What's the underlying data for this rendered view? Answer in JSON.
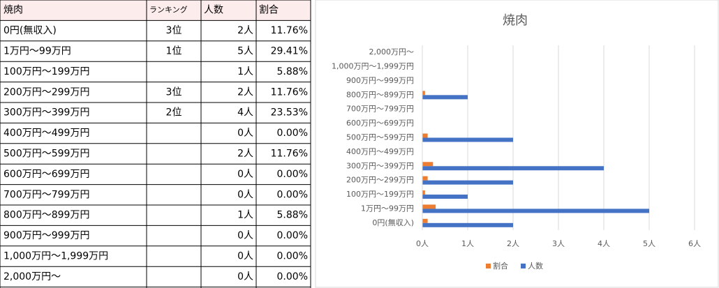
{
  "table": {
    "header": [
      "焼肉",
      "ランキング",
      "人数",
      "割合"
    ],
    "rows": [
      [
        "0円(無収入)",
        "3位",
        "2人",
        "11.76%"
      ],
      [
        "1万円～99万円",
        "1位",
        "5人",
        "29.41%"
      ],
      [
        "100万円～199万円",
        null,
        "1人",
        "5.88%"
      ],
      [
        "200万円～299万円",
        "3位",
        "2人",
        "11.76%"
      ],
      [
        "300万円～399万円",
        "2位",
        "4人",
        "23.53%"
      ],
      [
        "400万円～499万円",
        null,
        "0人",
        "0.00%"
      ],
      [
        "500万円～599万円",
        null,
        "2人",
        "11.76%"
      ],
      [
        "600万円～699万円",
        null,
        "0人",
        "0.00%"
      ],
      [
        "700万円～799万円",
        null,
        "0人",
        "0.00%"
      ],
      [
        "800万円～899万円",
        null,
        "1人",
        "5.88%"
      ],
      [
        "900万円～999万円",
        null,
        "0人",
        "0.00%"
      ],
      [
        "1,000万円～1,999万円",
        null,
        "0人",
        "0.00%"
      ],
      [
        "2,000万円～",
        null,
        "0人",
        "0.00%"
      ]
    ]
  },
  "chart_data": {
    "type": "hbar",
    "title": "焼肉",
    "categories": [
      "0円(無収入)",
      "1万円～99万円",
      "100万円～199万円",
      "200万円～299万円",
      "300万円～399万円",
      "400万円～499万円",
      "500万円～599万円",
      "600万円～699万円",
      "700万円～799万円",
      "800万円～899万円",
      "900万円～999万円",
      "1,000万円～1,999万円",
      "2,000万円～"
    ],
    "series": [
      {
        "name": "割合",
        "color": "#ed7d31",
        "values": [
          0.1176,
          0.2941,
          0.0588,
          0.1176,
          0.2353,
          0,
          0.1176,
          0,
          0,
          0.0588,
          0,
          0,
          0
        ]
      },
      {
        "name": "人数",
        "color": "#4472c4",
        "values": [
          2,
          5,
          1,
          2,
          4,
          0,
          2,
          0,
          0,
          1,
          0,
          0,
          0
        ]
      }
    ],
    "xlim": [
      0,
      6
    ],
    "xticks": [
      {
        "value": 0,
        "label": "0人"
      },
      {
        "value": 1,
        "label": "1人"
      },
      {
        "value": 2,
        "label": "2人"
      },
      {
        "value": 3,
        "label": "3人"
      },
      {
        "value": 4,
        "label": "4人"
      },
      {
        "value": 5,
        "label": "5人"
      },
      {
        "value": 6,
        "label": "6人"
      }
    ],
    "grid": true,
    "legend": "bottom"
  }
}
